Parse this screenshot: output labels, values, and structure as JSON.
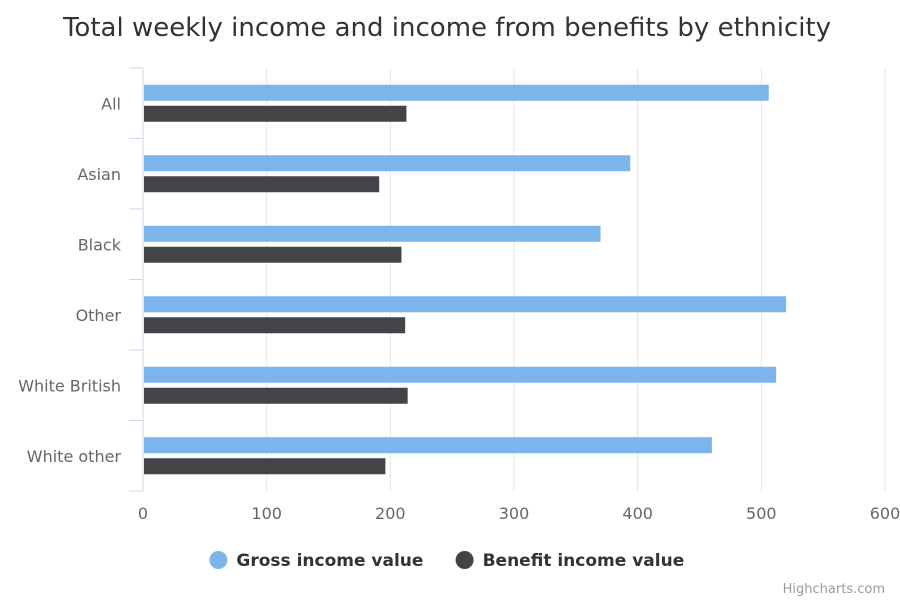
{
  "chart_data": {
    "type": "bar",
    "orientation": "horizontal",
    "title": "Total weekly income and income from benefits by ethnicity",
    "categories": [
      "All",
      "Asian",
      "Black",
      "Other",
      "White British",
      "White other"
    ],
    "series": [
      {
        "name": "Gross income value",
        "color": "#7cb5ec",
        "values": [
          506,
          394,
          370,
          520,
          512,
          460
        ]
      },
      {
        "name": "Benefit income value",
        "color": "#434348",
        "values": [
          213,
          191,
          209,
          212,
          214,
          196
        ]
      }
    ],
    "xlim": [
      0,
      600
    ],
    "ticks": [
      "0",
      "100",
      "200",
      "300",
      "400",
      "500",
      "600"
    ],
    "grid": true,
    "legend_position": "bottom-center",
    "credits": "Highcharts.com"
  }
}
